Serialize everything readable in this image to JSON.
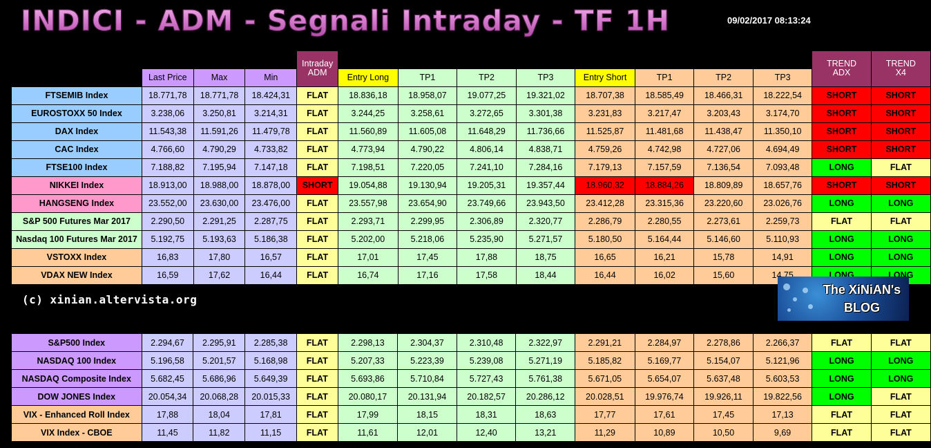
{
  "title": "INDICI - ADM - Segnali Intraday - TF 1H",
  "timestamp": "09/02/2017 08:13:24",
  "copyright": "(c) xinian.altervista.org",
  "logo": {
    "line1": "The XiNiAN's",
    "line2": "BLOG"
  },
  "headers": {
    "last_price": "Last Price",
    "max": "Max",
    "min": "Min",
    "intraday_adm": [
      "Intraday",
      "ADM"
    ],
    "entry_long": "Entry Long",
    "tp1": "TP1",
    "tp2": "TP2",
    "tp3": "TP3",
    "entry_short": "Entry Short",
    "tp1s": "TP1",
    "tp2s": "TP2",
    "tp3s": "TP3",
    "trend_adx": [
      "TREND",
      "ADX"
    ],
    "trend_x4": [
      "TREND",
      "X4"
    ]
  },
  "table1": [
    {
      "name": "FTSEMIB Index",
      "nc": "bl",
      "last": "18.771,78",
      "max": "18.771,78",
      "min": "18.424,31",
      "adm": "FLAT",
      "el": "18.836,18",
      "tp1": "18.958,07",
      "tp2": "19.077,25",
      "tp3": "19.321,02",
      "es": "18.707,38",
      "stp1": "18.585,49",
      "stp2": "18.466,31",
      "stp3": "18.222,54",
      "adx": "SHORT",
      "x4": "SHORT"
    },
    {
      "name": "EUROSTOXX 50 Index",
      "nc": "bl",
      "last": "3.238,06",
      "max": "3.250,81",
      "min": "3.214,31",
      "adm": "FLAT",
      "el": "3.244,25",
      "tp1": "3.258,61",
      "tp2": "3.272,65",
      "tp3": "3.301,38",
      "es": "3.231,83",
      "stp1": "3.217,47",
      "stp2": "3.203,43",
      "stp3": "3.174,70",
      "adx": "SHORT",
      "x4": "SHORT"
    },
    {
      "name": "DAX Index",
      "nc": "bl",
      "last": "11.543,38",
      "max": "11.591,26",
      "min": "11.479,78",
      "adm": "FLAT",
      "el": "11.560,89",
      "tp1": "11.605,08",
      "tp2": "11.648,29",
      "tp3": "11.736,66",
      "es": "11.525,87",
      "stp1": "11.481,68",
      "stp2": "11.438,47",
      "stp3": "11.350,10",
      "adx": "SHORT",
      "x4": "SHORT"
    },
    {
      "name": "CAC Index",
      "nc": "bl",
      "last": "4.766,60",
      "max": "4.790,29",
      "min": "4.733,82",
      "adm": "FLAT",
      "el": "4.773,94",
      "tp1": "4.790,22",
      "tp2": "4.806,14",
      "tp3": "4.838,71",
      "es": "4.759,26",
      "stp1": "4.742,98",
      "stp2": "4.727,06",
      "stp3": "4.694,49",
      "adx": "SHORT",
      "x4": "SHORT"
    },
    {
      "name": "FTSE100 Index",
      "nc": "bl",
      "last": "7.188,82",
      "max": "7.195,94",
      "min": "7.147,18",
      "adm": "FLAT",
      "el": "7.198,51",
      "tp1": "7.220,05",
      "tp2": "7.241,10",
      "tp3": "7.284,16",
      "es": "7.179,13",
      "stp1": "7.157,59",
      "stp2": "7.136,54",
      "stp3": "7.093,48",
      "adx": "LONG",
      "x4": "FLAT"
    },
    {
      "name": "NIKKEI Index",
      "nc": "pk",
      "last": "18.913,00",
      "max": "18.988,00",
      "min": "18.878,00",
      "adm": "SHORT",
      "el": "19.054,88",
      "tp1": "19.130,94",
      "tp2": "19.205,31",
      "tp3": "19.357,44",
      "es": "18.960,32",
      "stp1": "18.884,26",
      "stp2": "18.809,89",
      "stp3": "18.657,76",
      "adx": "SHORT",
      "x4": "SHORT",
      "es_hl": true,
      "stp1_hl": true
    },
    {
      "name": "HANGSENG Index",
      "nc": "pk",
      "last": "23.552,00",
      "max": "23.630,00",
      "min": "23.476,00",
      "adm": "FLAT",
      "el": "23.557,98",
      "tp1": "23.654,90",
      "tp2": "23.749,66",
      "tp3": "23.943,50",
      "es": "23.412,28",
      "stp1": "23.315,36",
      "stp2": "23.220,60",
      "stp3": "23.026,76",
      "adx": "LONG",
      "x4": "LONG"
    },
    {
      "name": "S&P 500 Futures Mar 2017",
      "nc": "gr",
      "last": "2.290,50",
      "max": "2.291,25",
      "min": "2.287,75",
      "adm": "FLAT",
      "el": "2.293,71",
      "tp1": "2.299,95",
      "tp2": "2.306,89",
      "tp3": "2.320,77",
      "es": "2.286,79",
      "stp1": "2.280,55",
      "stp2": "2.273,61",
      "stp3": "2.259,73",
      "adx": "FLAT",
      "x4": "FLAT"
    },
    {
      "name": "Nasdaq 100 Futures Mar 2017",
      "nc": "gr",
      "last": "5.192,75",
      "max": "5.193,63",
      "min": "5.186,38",
      "adm": "FLAT",
      "el": "5.202,00",
      "tp1": "5.218,06",
      "tp2": "5.235,90",
      "tp3": "5.271,57",
      "es": "5.180,50",
      "stp1": "5.164,44",
      "stp2": "5.146,60",
      "stp3": "5.110,93",
      "adx": "LONG",
      "x4": "LONG"
    },
    {
      "name": "VSTOXX Index",
      "nc": "or",
      "last": "16,83",
      "max": "17,80",
      "min": "16,57",
      "adm": "FLAT",
      "el": "17,01",
      "tp1": "17,45",
      "tp2": "17,88",
      "tp3": "18,75",
      "es": "16,65",
      "stp1": "16,21",
      "stp2": "15,78",
      "stp3": "14,91",
      "adx": "LONG",
      "x4": "LONG"
    },
    {
      "name": "VDAX NEW Index",
      "nc": "or",
      "last": "16,59",
      "max": "17,62",
      "min": "16,44",
      "adm": "FLAT",
      "el": "16,74",
      "tp1": "17,16",
      "tp2": "17,58",
      "tp3": "18,44",
      "es": "16,44",
      "stp1": "16,02",
      "stp2": "15,60",
      "stp3": "14,75",
      "adx": "LONG",
      "x4": "LONG"
    }
  ],
  "table2": [
    {
      "name": "S&P500 Index",
      "nc": "pu",
      "last": "2.294,67",
      "max": "2.295,91",
      "min": "2.285,38",
      "adm": "FLAT",
      "el": "2.298,13",
      "tp1": "2.304,37",
      "tp2": "2.310,48",
      "tp3": "2.322,97",
      "es": "2.291,21",
      "stp1": "2.284,97",
      "stp2": "2.278,86",
      "stp3": "2.266,37",
      "adx": "FLAT",
      "x4": "FLAT"
    },
    {
      "name": "NASDAQ 100 Index",
      "nc": "pu",
      "last": "5.196,58",
      "max": "5.201,57",
      "min": "5.168,98",
      "adm": "FLAT",
      "el": "5.207,33",
      "tp1": "5.223,39",
      "tp2": "5.239,08",
      "tp3": "5.271,19",
      "es": "5.185,82",
      "stp1": "5.169,77",
      "stp2": "5.154,07",
      "stp3": "5.121,96",
      "adx": "LONG",
      "x4": "LONG"
    },
    {
      "name": "NASDAQ Composite Index",
      "nc": "pu",
      "last": "5.682,45",
      "max": "5.686,96",
      "min": "5.649,39",
      "adm": "FLAT",
      "el": "5.693,86",
      "tp1": "5.710,84",
      "tp2": "5.727,43",
      "tp3": "5.761,38",
      "es": "5.671,05",
      "stp1": "5.654,07",
      "stp2": "5.637,48",
      "stp3": "5.603,53",
      "adx": "LONG",
      "x4": "LONG"
    },
    {
      "name": "DOW JONES Index",
      "nc": "pu",
      "last": "20.054,34",
      "max": "20.068,28",
      "min": "20.015,33",
      "adm": "FLAT",
      "el": "20.080,17",
      "tp1": "20.131,94",
      "tp2": "20.182,57",
      "tp3": "20.286,12",
      "es": "20.028,51",
      "stp1": "19.976,74",
      "stp2": "19.926,11",
      "stp3": "19.822,56",
      "adx": "LONG",
      "x4": "FLAT"
    },
    {
      "name": "VIX - Enhanced Roll Index",
      "nc": "or",
      "last": "17,88",
      "max": "18,04",
      "min": "17,81",
      "adm": "FLAT",
      "el": "17,99",
      "tp1": "18,15",
      "tp2": "18,31",
      "tp3": "18,63",
      "es": "17,77",
      "stp1": "17,61",
      "stp2": "17,45",
      "stp3": "17,13",
      "adx": "FLAT",
      "x4": "FLAT"
    },
    {
      "name": "VIX Index - CBOE",
      "nc": "or",
      "last": "11,45",
      "max": "11,82",
      "min": "11,15",
      "adm": "FLAT",
      "el": "11,61",
      "tp1": "12,01",
      "tp2": "12,40",
      "tp3": "13,21",
      "es": "11,29",
      "stp1": "10,89",
      "stp2": "10,50",
      "stp3": "9,69",
      "adx": "FLAT",
      "x4": "FLAT"
    }
  ]
}
